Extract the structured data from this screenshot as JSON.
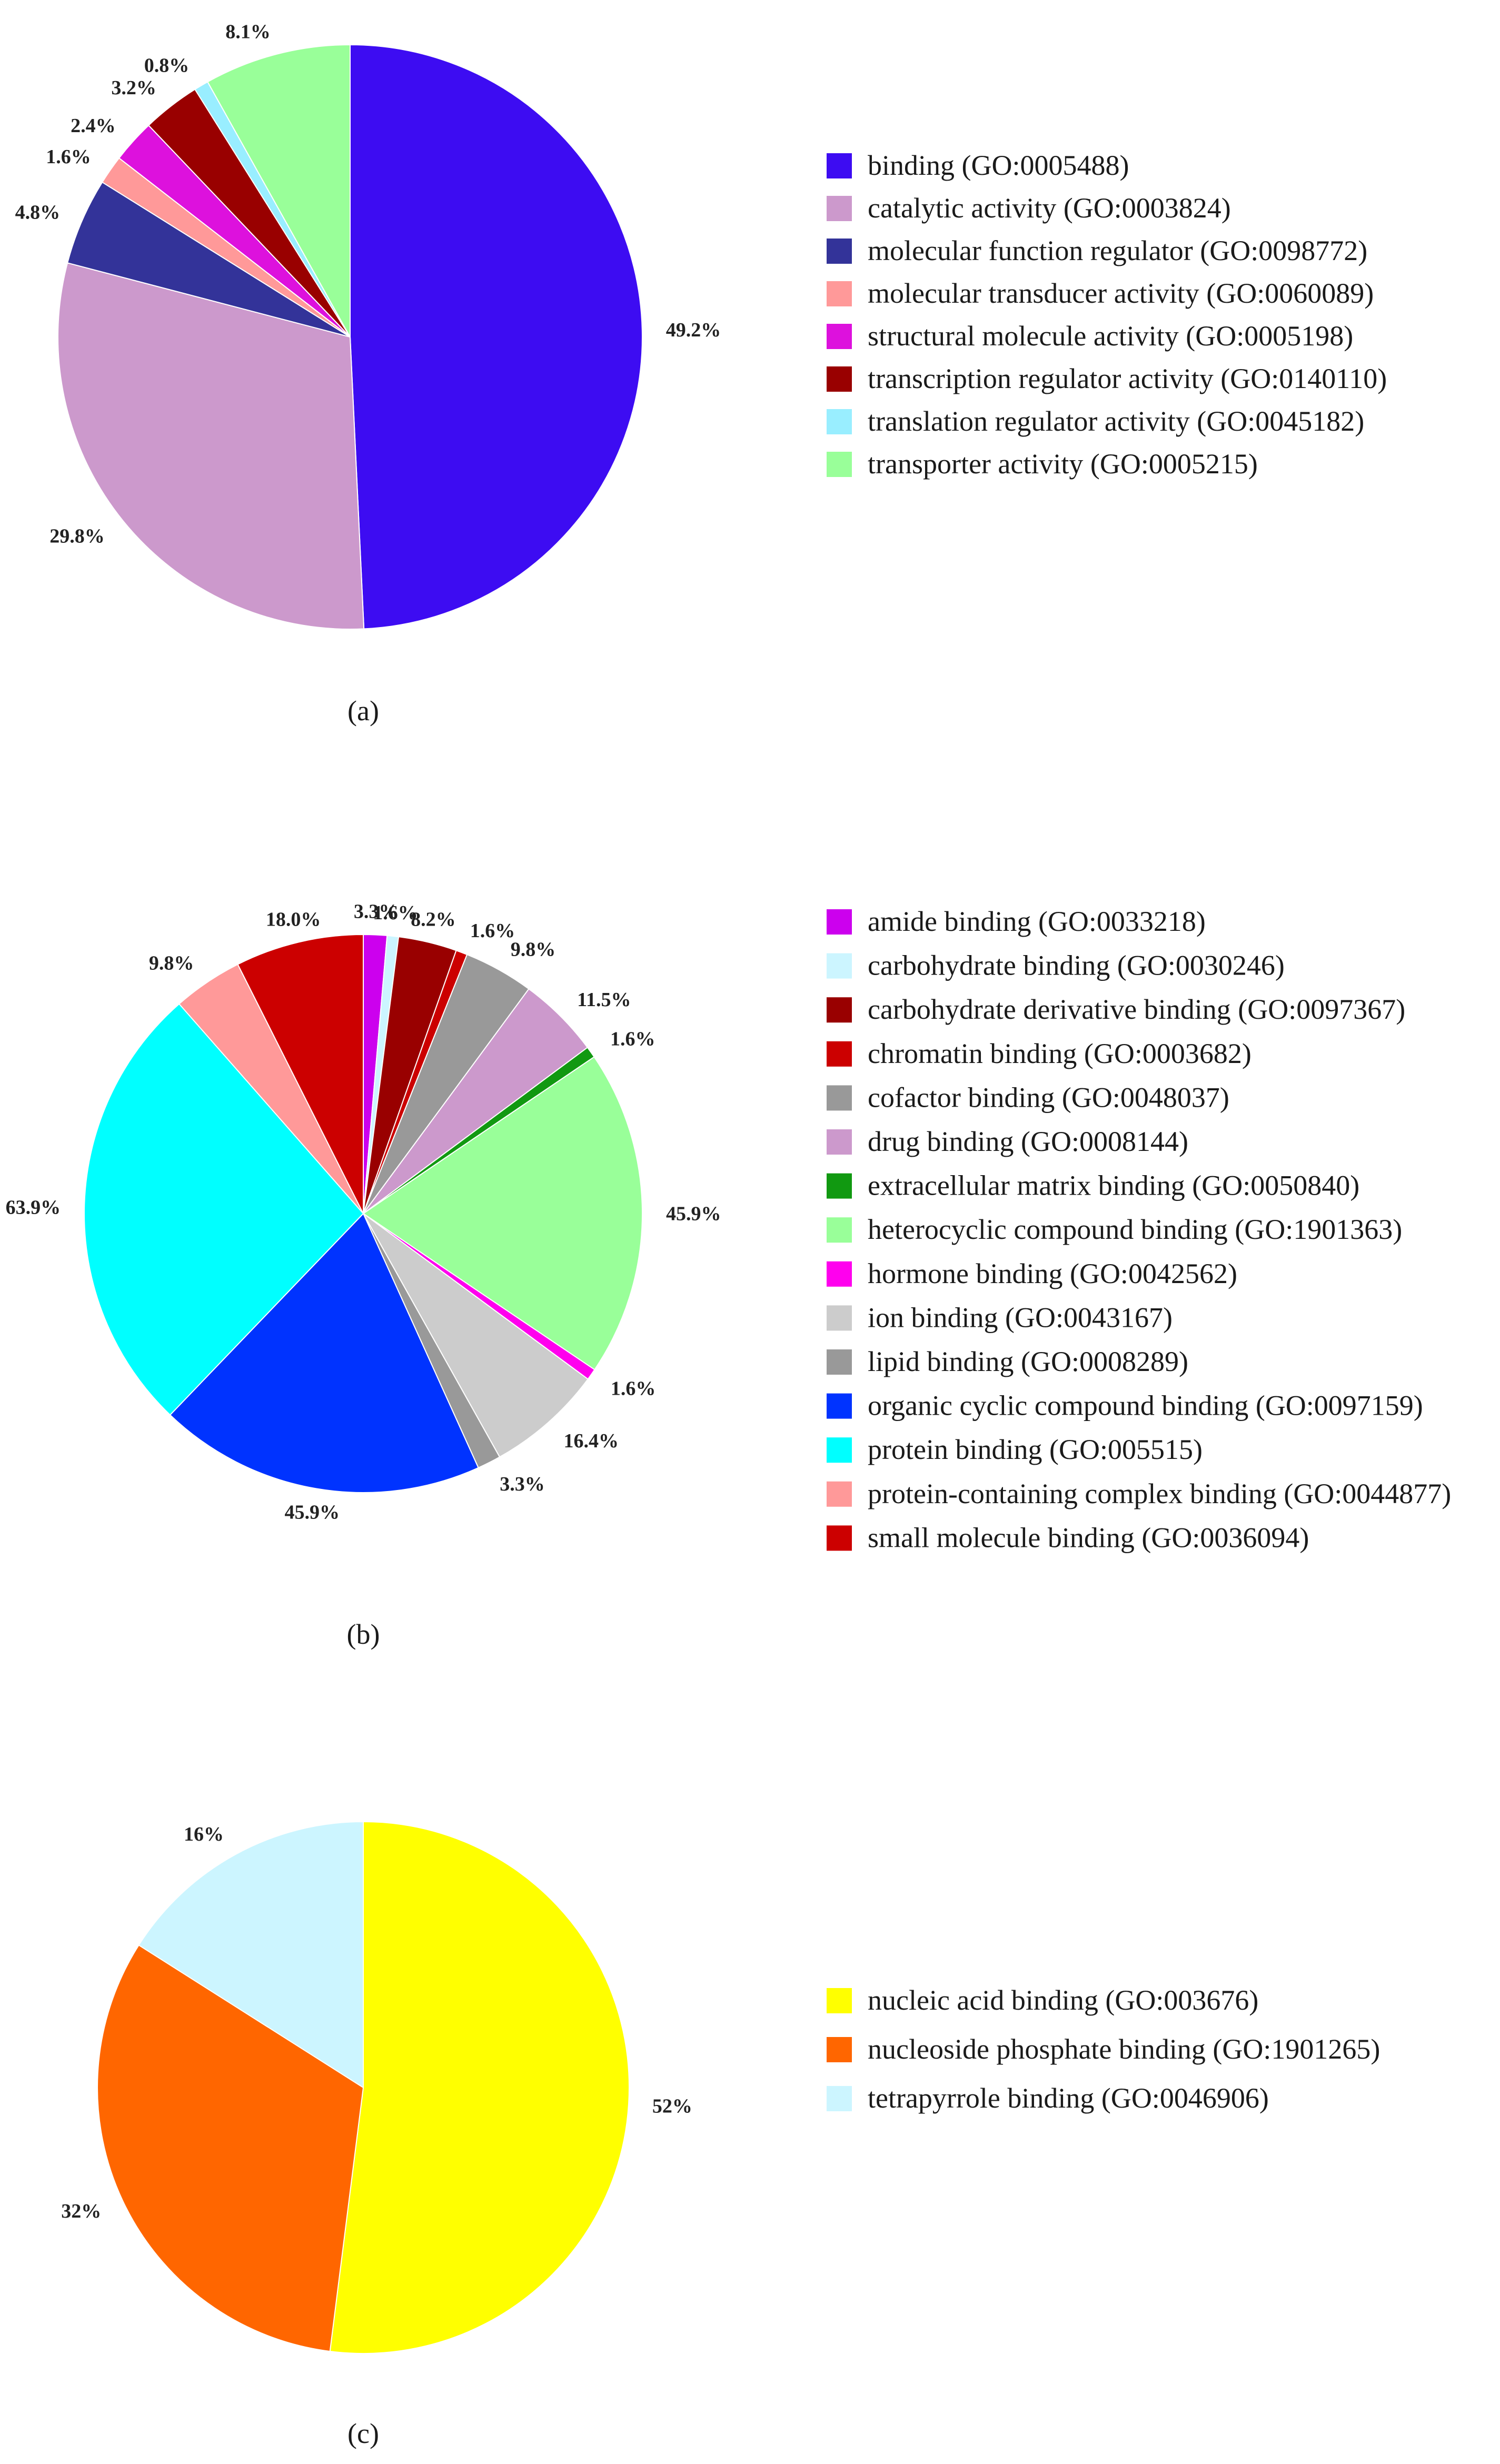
{
  "chart_data": [
    {
      "type": "pie",
      "caption": "(a)",
      "slices": [
        {
          "label": "binding (GO:0005488)",
          "value": 49.2,
          "pct_label": "49.2%",
          "color": "#3d0cf2"
        },
        {
          "label": "catalytic activity (GO:0003824)",
          "value": 29.8,
          "pct_label": "29.8%",
          "color": "#cc99cc"
        },
        {
          "label": "molecular function regulator (GO:0098772)",
          "value": 4.8,
          "pct_label": "4.8%",
          "color": "#333399"
        },
        {
          "label": "molecular transducer activity (GO:0060089)",
          "value": 1.6,
          "pct_label": "1.6%",
          "color": "#ff9999"
        },
        {
          "label": "structural molecule activity (GO:0005198)",
          "value": 2.4,
          "pct_label": "2.4%",
          "color": "#dd11dd"
        },
        {
          "label": "transcription regulator activity (GO:0140110)",
          "value": 3.2,
          "pct_label": "3.2%",
          "color": "#990000"
        },
        {
          "label": "translation regulator activity (GO:0045182)",
          "value": 0.8,
          "pct_label": "0.8%",
          "color": "#99eeff"
        },
        {
          "label": "transporter activity (GO:0005215)",
          "value": 8.1,
          "pct_label": "8.1%",
          "color": "#99ff99"
        }
      ]
    },
    {
      "type": "pie",
      "caption": "(b)",
      "slices": [
        {
          "label": "amide binding (GO:0033218)",
          "value": 3.3,
          "pct_label": "3.3%",
          "color": "#cc00ee"
        },
        {
          "label": "carbohydrate binding (GO:0030246)",
          "value": 1.6,
          "pct_label": "1.6%",
          "color": "#ccf5ff"
        },
        {
          "label": "carbohydrate derivative binding (GO:0097367)",
          "value": 8.2,
          "pct_label": "8.2%",
          "color": "#990000"
        },
        {
          "label": "chromatin binding (GO:0003682)",
          "value": 1.6,
          "pct_label": "1.6%",
          "color": "#cc0000"
        },
        {
          "label": "cofactor binding (GO:0048037)",
          "value": 9.8,
          "pct_label": "9.8%",
          "color": "#999999"
        },
        {
          "label": "drug binding (GO:0008144)",
          "value": 11.5,
          "pct_label": "11.5%",
          "color": "#cc99cc"
        },
        {
          "label": "extracellular matrix binding (GO:0050840)",
          "value": 1.6,
          "pct_label": "1.6%",
          "color": "#119911"
        },
        {
          "label": "heterocyclic compound binding (GO:1901363)",
          "value": 45.9,
          "pct_label": "45.9%",
          "color": "#99ff99"
        },
        {
          "label": "hormone binding (GO:0042562)",
          "value": 1.6,
          "pct_label": "1.6%",
          "color": "#ff00ee"
        },
        {
          "label": "ion binding (GO:0043167)",
          "value": 16.4,
          "pct_label": "16.4%",
          "color": "#cccccc"
        },
        {
          "label": "lipid binding (GO:0008289)",
          "value": 3.3,
          "pct_label": "3.3%",
          "color": "#999999"
        },
        {
          "label": "organic cyclic  compound binding (GO:0097159)",
          "value": 45.9,
          "pct_label": "45.9%",
          "color": "#0033ff"
        },
        {
          "label": "protein binding (GO:005515)",
          "value": 63.9,
          "pct_label": "63.9%",
          "color": "#00ffff"
        },
        {
          "label": "protein-containing complex binding (GO:0044877)",
          "value": 9.8,
          "pct_label": "9.8%",
          "color": "#ff9999"
        },
        {
          "label": "small molecule binding (GO:0036094)",
          "value": 18.0,
          "pct_label": "18.0%",
          "color": "#cc0000"
        }
      ]
    },
    {
      "type": "pie",
      "caption": "(c)",
      "slices": [
        {
          "label": "nucleic acid binding (GO:003676)",
          "value": 52,
          "pct_label": "52%",
          "color": "#ffff00"
        },
        {
          "label": "nucleoside phosphate binding (GO:1901265)",
          "value": 32,
          "pct_label": "32%",
          "color": "#ff6600"
        },
        {
          "label": "tetrapyrrole binding (GO:0046906)",
          "value": 16,
          "pct_label": "16%",
          "color": "#ccf5ff"
        }
      ]
    }
  ]
}
